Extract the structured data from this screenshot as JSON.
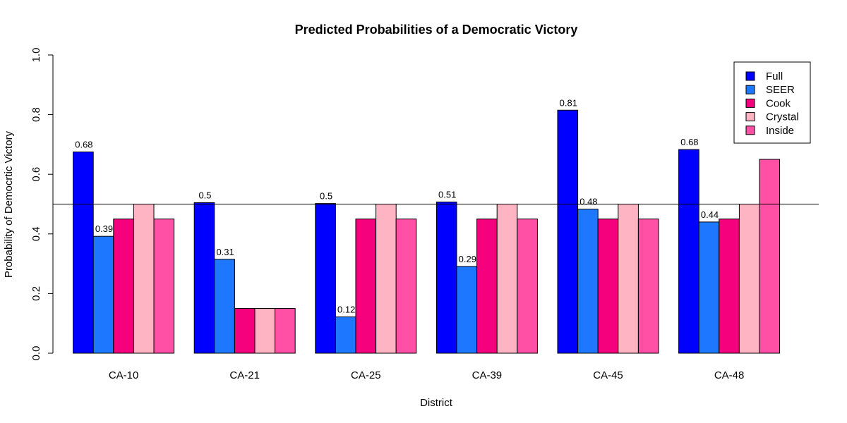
{
  "chart_data": {
    "type": "bar",
    "title": "Predicted Probabilities of a Democratic Victory",
    "xlabel": "District",
    "ylabel": "Probability of Democrtic Victory",
    "ylim": [
      0,
      1
    ],
    "yticks": [
      "0.0",
      "0.2",
      "0.4",
      "0.6",
      "0.8",
      "1.0"
    ],
    "grid": false,
    "legend_position": "top-right",
    "reference_line": 0.5,
    "categories": [
      "CA-10",
      "CA-21",
      "CA-25",
      "CA-39",
      "CA-45",
      "CA-48"
    ],
    "series": [
      {
        "name": "Full",
        "color": "#0000FF",
        "values": [
          0.675,
          0.505,
          0.502,
          0.507,
          0.815,
          0.683
        ],
        "labels": [
          "0.68",
          "0.5",
          "0.5",
          "0.51",
          "0.81",
          "0.68"
        ]
      },
      {
        "name": "SEER",
        "color": "#1E78FF",
        "values": [
          0.392,
          0.315,
          0.122,
          0.291,
          0.483,
          0.44
        ],
        "labels": [
          "0.39",
          "0.31",
          "0.12",
          "0.29",
          "0.48",
          "0.44"
        ]
      },
      {
        "name": "Cook",
        "color": "#F5007D",
        "values": [
          0.45,
          0.15,
          0.45,
          0.45,
          0.45,
          0.45
        ],
        "labels": [
          "",
          "",
          "",
          "",
          "",
          ""
        ]
      },
      {
        "name": "Crystal",
        "color": "#FFB4C3",
        "values": [
          0.5,
          0.15,
          0.5,
          0.5,
          0.5,
          0.5
        ],
        "labels": [
          "",
          "",
          "",
          "",
          "",
          ""
        ]
      },
      {
        "name": "Inside",
        "color": "#FF50A5",
        "values": [
          0.45,
          0.15,
          0.45,
          0.45,
          0.45,
          0.65
        ],
        "labels": [
          "",
          "",
          "",
          "",
          "",
          ""
        ]
      }
    ]
  }
}
